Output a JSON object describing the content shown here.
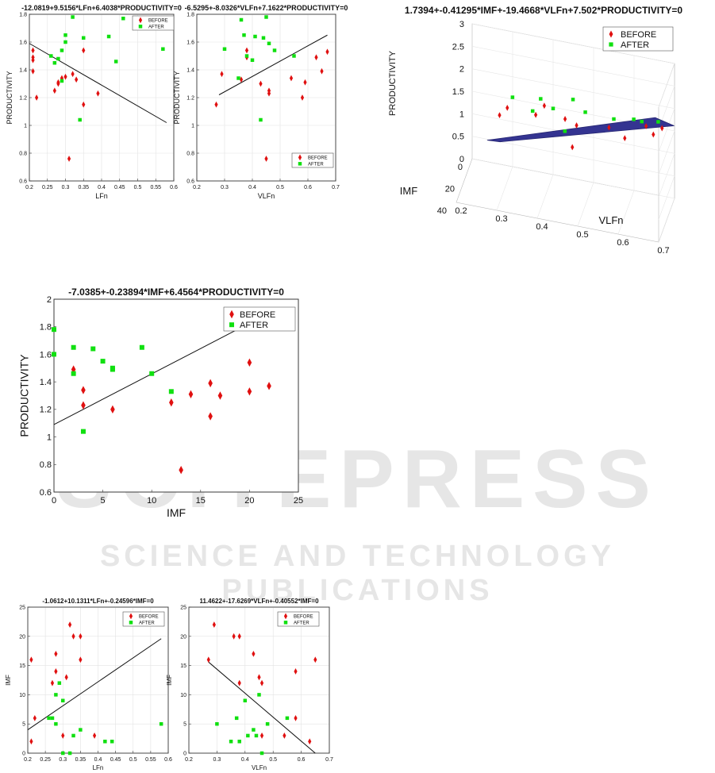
{
  "watermark": {
    "brand": "SCITEPRESS",
    "tagline": "SCIENCE AND TECHNOLOGY PUBLICATIONS"
  },
  "legend": {
    "before": "BEFORE",
    "after": "AFTER"
  },
  "colors": {
    "before": "#e01010",
    "after": "#10e010",
    "fit": "#111111",
    "surface": "#2a2a8c"
  },
  "chart_data": [
    {
      "id": "c1",
      "type": "scatter",
      "title": "-12.0819+9.5156*LFn+6.4038*PRODUCTIVITY=0",
      "xlabel": "LFn",
      "ylabel": "PRODUCTIVITY",
      "xlim": [
        0.2,
        0.6
      ],
      "ylim": [
        0.6,
        1.8
      ],
      "xticks": [
        0.2,
        0.25,
        0.3,
        0.35,
        0.4,
        0.45,
        0.5,
        0.55,
        0.6
      ],
      "xticklabels": [
        "0.2",
        "0.25",
        "0.3",
        "0.35",
        "0.4",
        "0.45",
        "0.5",
        "0.55",
        "0.6"
      ],
      "yticks": [
        0.6,
        0.8,
        1.0,
        1.2,
        1.4,
        1.6,
        1.8
      ],
      "yticklabels": [
        "0.6",
        "0.8",
        "1",
        "1.2",
        "1.4",
        "1.6",
        "1.8"
      ],
      "grid": true,
      "legend_position": "top-right",
      "fit_line": [
        [
          0.2,
          1.59
        ],
        [
          0.58,
          1.02
        ]
      ],
      "series": [
        {
          "name": "BEFORE",
          "marker": "diamond",
          "x": [
            0.21,
            0.21,
            0.21,
            0.21,
            0.22,
            0.27,
            0.28,
            0.28,
            0.29,
            0.3,
            0.31,
            0.32,
            0.33,
            0.35,
            0.35,
            0.39
          ],
          "y": [
            1.54,
            1.49,
            1.47,
            1.39,
            1.2,
            1.25,
            1.3,
            1.31,
            1.34,
            1.35,
            0.76,
            1.37,
            1.33,
            1.15,
            1.54,
            1.23
          ]
        },
        {
          "name": "AFTER",
          "marker": "square",
          "x": [
            0.26,
            0.27,
            0.28,
            0.29,
            0.29,
            0.3,
            0.3,
            0.32,
            0.34,
            0.35,
            0.42,
            0.44,
            0.46,
            0.57
          ],
          "y": [
            1.5,
            1.45,
            1.48,
            1.32,
            1.54,
            1.6,
            1.65,
            1.78,
            1.04,
            1.63,
            1.64,
            1.46,
            1.77,
            1.55
          ]
        }
      ]
    },
    {
      "id": "c2",
      "type": "scatter",
      "title": "-6.5295+-8.0326*VLFn+7.1622*PRODUCTIVITY=0",
      "xlabel": "VLFn",
      "ylabel": "PRODUCTIVITY",
      "xlim": [
        0.2,
        0.7
      ],
      "ylim": [
        0.6,
        1.8
      ],
      "xticks": [
        0.2,
        0.3,
        0.4,
        0.5,
        0.6,
        0.7
      ],
      "xticklabels": [
        "0.2",
        "0.3",
        "0.4",
        "0.5",
        "0.6",
        "0.7"
      ],
      "yticks": [
        0.6,
        0.8,
        1.0,
        1.2,
        1.4,
        1.6,
        1.8
      ],
      "yticklabels": [
        "0.6",
        "0.8",
        "1",
        "1.2",
        "1.4",
        "1.6",
        "1.8"
      ],
      "grid": true,
      "legend_position": "bottom-right",
      "fit_line": [
        [
          0.28,
          1.22
        ],
        [
          0.67,
          1.65
        ]
      ],
      "series": [
        {
          "name": "BEFORE",
          "marker": "diamond",
          "x": [
            0.27,
            0.29,
            0.36,
            0.38,
            0.38,
            0.43,
            0.45,
            0.46,
            0.46,
            0.54,
            0.58,
            0.59,
            0.63,
            0.65,
            0.67
          ],
          "y": [
            1.15,
            1.37,
            1.33,
            1.54,
            1.49,
            1.3,
            0.76,
            1.25,
            1.23,
            1.34,
            1.2,
            1.31,
            1.49,
            1.39,
            1.53
          ]
        },
        {
          "name": "AFTER",
          "marker": "square",
          "x": [
            0.3,
            0.35,
            0.36,
            0.37,
            0.38,
            0.4,
            0.41,
            0.43,
            0.44,
            0.45,
            0.46,
            0.48,
            0.55
          ],
          "y": [
            1.55,
            1.34,
            1.76,
            1.65,
            1.5,
            1.47,
            1.64,
            1.04,
            1.63,
            1.78,
            1.59,
            1.54,
            1.5
          ]
        }
      ]
    },
    {
      "id": "c3",
      "type": "surface",
      "title": "1.7394+-0.41295*IMF+-19.4668*VLFn+7.502*PRODUCTIVITY=0",
      "xlabel": "VLFn",
      "ylabel": "IMF",
      "zlabel": "PRODUCTIVITY",
      "xlim": [
        0.2,
        0.7
      ],
      "ylim": [
        0,
        40
      ],
      "zlim": [
        0,
        3
      ],
      "xticklabels": [
        "0.2",
        "0.3",
        "0.4",
        "0.5",
        "0.6",
        "0.7"
      ],
      "yticklabels": [
        "0",
        "20",
        "40"
      ],
      "zticklabels": [
        "0",
        "0.5",
        "1",
        "1.5",
        "2",
        "2.5",
        "3"
      ],
      "grid": true,
      "legend_position": "top-right",
      "series": [
        {
          "name": "BEFORE",
          "marker": "diamond",
          "x": [
            0.27,
            0.29,
            0.36,
            0.38,
            0.43,
            0.45,
            0.46,
            0.54,
            0.58,
            0.63,
            0.65,
            0.67
          ],
          "y": [
            16,
            22,
            20,
            12,
            3,
            17,
            14,
            13,
            20,
            2,
            16,
            6
          ],
          "z": [
            1.15,
            1.37,
            1.33,
            1.54,
            1.3,
            0.76,
            1.25,
            1.34,
            1.2,
            1.49,
            1.39,
            1.53
          ]
        },
        {
          "name": "AFTER",
          "marker": "square",
          "x": [
            0.3,
            0.35,
            0.37,
            0.4,
            0.43,
            0.45,
            0.48,
            0.55,
            0.6,
            0.62,
            0.66
          ],
          "y": [
            2,
            4,
            5,
            0,
            6,
            6,
            3,
            0,
            5,
            6,
            2
          ],
          "z": [
            1.55,
            1.34,
            1.65,
            1.47,
            1.04,
            1.78,
            1.54,
            1.5,
            1.6,
            1.59,
            1.64
          ]
        }
      ]
    },
    {
      "id": "c4",
      "type": "scatter",
      "title": "-7.0385+-0.23894*IMF+6.4564*PRODUCTIVITY=0",
      "xlabel": "IMF",
      "ylabel": "PRODUCTIVITY",
      "xlim": [
        0,
        25
      ],
      "ylim": [
        0.6,
        2.0
      ],
      "xticks": [
        0,
        5,
        10,
        15,
        20,
        25
      ],
      "xticklabels": [
        "0",
        "5",
        "10",
        "15",
        "20",
        "25"
      ],
      "yticks": [
        0.6,
        0.8,
        1.0,
        1.2,
        1.4,
        1.6,
        1.8,
        2.0
      ],
      "yticklabels": [
        "0.6",
        "0.8",
        "1",
        "1.2",
        "1.4",
        "1.6",
        "1.8",
        "2"
      ],
      "grid": false,
      "legend_position": "top-right",
      "fit_line": [
        [
          0,
          1.09
        ],
        [
          19.3,
          1.8
        ]
      ],
      "series": [
        {
          "name": "BEFORE",
          "marker": "diamond",
          "x": [
            2,
            3,
            3,
            6,
            12,
            13,
            14,
            16,
            16,
            17,
            20,
            20,
            22
          ],
          "y": [
            1.49,
            1.34,
            1.23,
            1.2,
            1.25,
            0.76,
            1.31,
            1.39,
            1.15,
            1.3,
            1.54,
            1.33,
            1.37
          ]
        },
        {
          "name": "AFTER",
          "marker": "square",
          "x": [
            0,
            0,
            2,
            2,
            3,
            4,
            5,
            6,
            6,
            9,
            10,
            12
          ],
          "y": [
            1.78,
            1.6,
            1.65,
            1.46,
            1.04,
            1.64,
            1.55,
            1.5,
            1.49,
            1.65,
            1.46,
            1.33
          ]
        }
      ]
    },
    {
      "id": "c5",
      "type": "scatter",
      "title": "-1.0612+10.1311*LFn+-0.24596*IMF=0",
      "xlabel": "LFn",
      "ylabel": "IMF",
      "xlim": [
        0.2,
        0.6
      ],
      "ylim": [
        0,
        25
      ],
      "xticks": [
        0.2,
        0.25,
        0.3,
        0.35,
        0.4,
        0.45,
        0.5,
        0.55,
        0.6
      ],
      "xticklabels": [
        "0.2",
        "0.25",
        "0.3",
        "0.35",
        "0.4",
        "0.45",
        "0.5",
        "0.55",
        "0.6"
      ],
      "yticks": [
        0,
        5,
        10,
        15,
        20,
        25
      ],
      "yticklabels": [
        "0",
        "5",
        "10",
        "15",
        "20",
        "25"
      ],
      "grid": true,
      "legend_position": "top-right",
      "fit_line": [
        [
          0.2,
          4
        ],
        [
          0.58,
          19.6
        ]
      ],
      "series": [
        {
          "name": "BEFORE",
          "marker": "diamond",
          "x": [
            0.21,
            0.21,
            0.22,
            0.27,
            0.28,
            0.28,
            0.3,
            0.31,
            0.32,
            0.33,
            0.35,
            0.35,
            0.39
          ],
          "y": [
            16,
            2,
            6,
            12,
            17,
            14,
            3,
            13,
            22,
            20,
            16,
            20,
            3
          ]
        },
        {
          "name": "AFTER",
          "marker": "square",
          "x": [
            0.26,
            0.27,
            0.28,
            0.28,
            0.29,
            0.3,
            0.3,
            0.32,
            0.33,
            0.35,
            0.42,
            0.44,
            0.58
          ],
          "y": [
            6,
            6,
            5,
            10,
            12,
            9,
            0,
            0,
            3,
            4,
            2,
            2,
            5
          ]
        }
      ]
    },
    {
      "id": "c6",
      "type": "scatter",
      "title": "11.4622+-17.6269*VLFn+-0.40552*IMF=0",
      "xlabel": "VLFn",
      "ylabel": "IMF",
      "xlim": [
        0.2,
        0.7
      ],
      "ylim": [
        0,
        25
      ],
      "xticks": [
        0.2,
        0.3,
        0.4,
        0.5,
        0.6,
        0.7
      ],
      "xticklabels": [
        "0.2",
        "0.3",
        "0.4",
        "0.5",
        "0.6",
        "0.7"
      ],
      "yticks": [
        0,
        5,
        10,
        15,
        20,
        25
      ],
      "yticklabels": [
        "0",
        "5",
        "10",
        "15",
        "20",
        "25"
      ],
      "grid": true,
      "legend_position": "top-right",
      "fit_line": [
        [
          0.27,
          15.6
        ],
        [
          0.65,
          0
        ]
      ],
      "series": [
        {
          "name": "BEFORE",
          "marker": "diamond",
          "x": [
            0.27,
            0.29,
            0.36,
            0.38,
            0.38,
            0.43,
            0.45,
            0.46,
            0.46,
            0.54,
            0.58,
            0.58,
            0.63,
            0.65
          ],
          "y": [
            16,
            22,
            20,
            12,
            20,
            17,
            13,
            12,
            3,
            3,
            14,
            6,
            2,
            16
          ]
        },
        {
          "name": "AFTER",
          "marker": "square",
          "x": [
            0.3,
            0.35,
            0.37,
            0.38,
            0.4,
            0.41,
            0.43,
            0.44,
            0.45,
            0.46,
            0.48,
            0.55
          ],
          "y": [
            5,
            2,
            6,
            2,
            9,
            3,
            4,
            3,
            10,
            0,
            5,
            6
          ]
        }
      ]
    }
  ]
}
